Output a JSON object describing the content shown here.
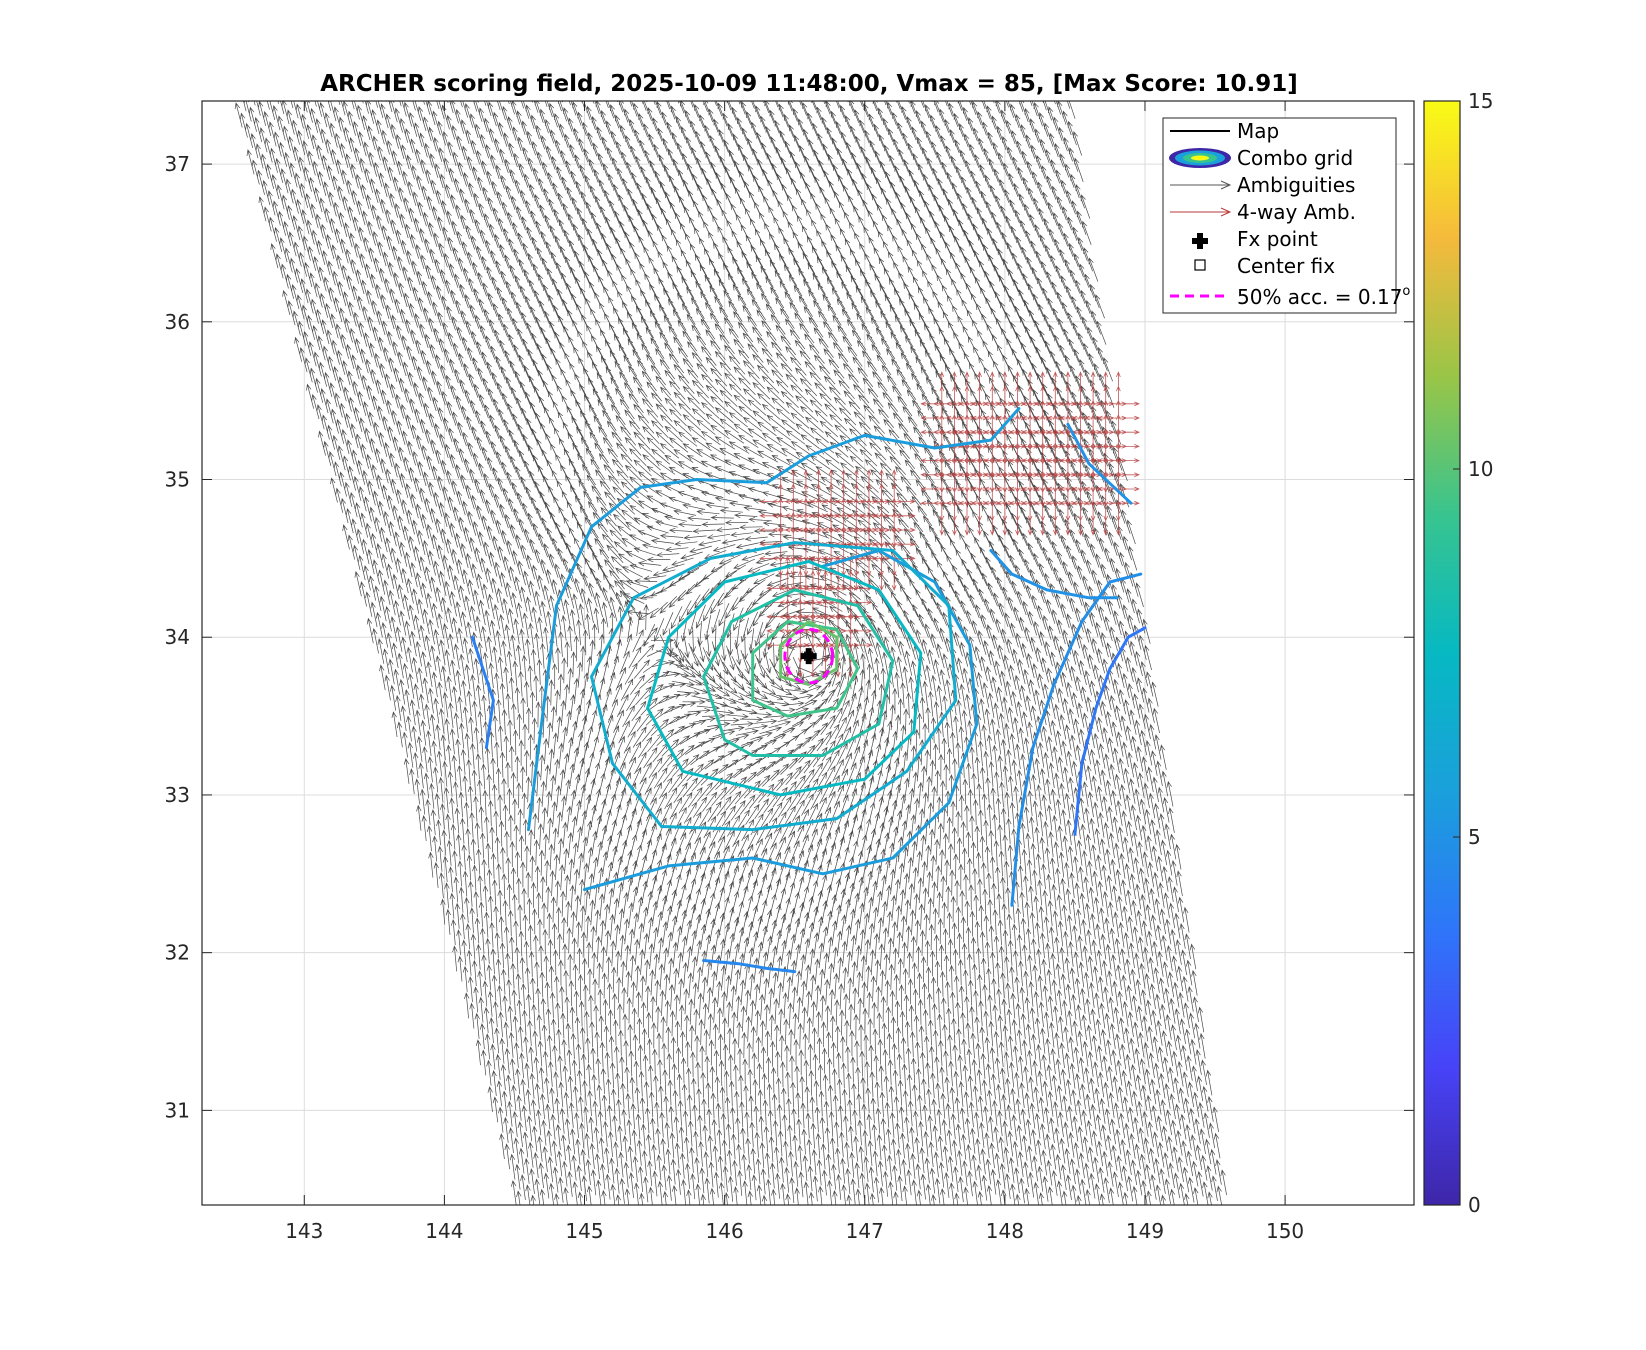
{
  "chart_data": {
    "type": "scatter",
    "title": "ARCHER scoring field, 2025-10-09 11:48:00, Vmax = 85, [Max Score: 10.91]",
    "xlabel": "",
    "ylabel": "",
    "xlim": [
      142.27,
      150.92
    ],
    "ylim": [
      30.4,
      37.4
    ],
    "x_ticks": [
      143,
      144,
      145,
      146,
      147,
      148,
      149,
      150
    ],
    "x_tick_labels": [
      "143",
      "144",
      "145",
      "146",
      "147",
      "148",
      "149",
      "150"
    ],
    "y_ticks": [
      31,
      32,
      33,
      34,
      35,
      36,
      37
    ],
    "y_tick_labels": [
      "31",
      "32",
      "33",
      "34",
      "35",
      "36",
      "37"
    ],
    "grid": true,
    "legend_position": "top-right",
    "legend": [
      {
        "key": "map",
        "label": "Map"
      },
      {
        "key": "combo",
        "label": "Combo grid"
      },
      {
        "key": "amb",
        "label": "Ambiguities"
      },
      {
        "key": "amb4",
        "label": "4-way Amb."
      },
      {
        "key": "fx",
        "label": "Fx point"
      },
      {
        "key": "center",
        "label": "Center fix"
      },
      {
        "key": "acc",
        "label": "50% acc. = 0.17",
        "sup": "o"
      }
    ],
    "colorbar": {
      "min": 0,
      "max": 15,
      "ticks": [
        0,
        5,
        10,
        15
      ],
      "tick_labels": [
        "0",
        "5",
        "10",
        "15"
      ],
      "colormap": "parula"
    },
    "center": {
      "lon": 146.6,
      "lat": 33.88
    },
    "accuracy_radius_deg": 0.17,
    "swath": {
      "left_edge": [
        [
          142.5,
          37.4
        ],
        [
          144.5,
          30.4
        ]
      ],
      "right_edge": [
        [
          149.6,
          30.4
        ],
        [
          148.5,
          37.4
        ]
      ]
    },
    "contours": [
      {
        "level": 4.2,
        "points": [
          [
            144.2,
            34.0
          ],
          [
            144.35,
            33.6
          ],
          [
            144.3,
            33.3
          ]
        ]
      },
      {
        "level": 4.5,
        "points": [
          [
            145.85,
            31.95
          ],
          [
            146.1,
            31.93
          ],
          [
            146.3,
            31.9
          ],
          [
            146.5,
            31.88
          ]
        ]
      },
      {
        "level": 3.8,
        "points": [
          [
            148.5,
            32.75
          ],
          [
            148.55,
            33.2
          ],
          [
            148.65,
            33.55
          ],
          [
            148.75,
            33.8
          ],
          [
            148.88,
            34.0
          ],
          [
            149.0,
            34.06
          ]
        ]
      },
      {
        "level": 4.8,
        "points": [
          [
            148.05,
            32.3
          ],
          [
            148.1,
            32.8
          ],
          [
            148.2,
            33.3
          ],
          [
            148.35,
            33.7
          ],
          [
            148.55,
            34.1
          ],
          [
            148.75,
            34.35
          ],
          [
            148.97,
            34.4
          ]
        ]
      },
      {
        "level": 5.0,
        "points": [
          [
            148.45,
            35.35
          ],
          [
            148.6,
            35.1
          ],
          [
            148.9,
            34.85
          ]
        ]
      },
      {
        "level": 5.0,
        "points": [
          [
            147.9,
            34.55
          ],
          [
            148.05,
            34.4
          ],
          [
            148.3,
            34.3
          ],
          [
            148.6,
            34.25
          ],
          [
            148.8,
            34.25
          ]
        ]
      },
      {
        "level": 5.5,
        "points": [
          [
            144.6,
            32.78
          ],
          [
            144.7,
            33.5
          ],
          [
            144.8,
            34.2
          ],
          [
            145.05,
            34.7
          ],
          [
            145.4,
            34.95
          ],
          [
            145.8,
            35.0
          ],
          [
            146.3,
            34.98
          ],
          [
            146.6,
            35.15
          ],
          [
            147.0,
            35.28
          ],
          [
            147.5,
            35.2
          ],
          [
            147.9,
            35.25
          ],
          [
            148.1,
            35.45
          ]
        ]
      },
      {
        "level": 5.5,
        "points": [
          [
            145.0,
            32.4
          ],
          [
            145.6,
            32.55
          ],
          [
            146.2,
            32.6
          ],
          [
            146.7,
            32.5
          ],
          [
            147.2,
            32.6
          ],
          [
            147.6,
            32.95
          ],
          [
            147.8,
            33.45
          ],
          [
            147.75,
            33.95
          ],
          [
            147.5,
            34.35
          ],
          [
            147.1,
            34.55
          ],
          [
            146.7,
            34.45
          ]
        ]
      },
      {
        "level": 6.5,
        "points": [
          [
            145.55,
            32.8
          ],
          [
            145.2,
            33.2
          ],
          [
            145.05,
            33.75
          ],
          [
            145.35,
            34.25
          ],
          [
            145.9,
            34.5
          ],
          [
            146.5,
            34.6
          ],
          [
            147.2,
            34.55
          ],
          [
            147.6,
            34.2
          ],
          [
            147.65,
            33.6
          ],
          [
            147.3,
            33.15
          ],
          [
            146.8,
            32.85
          ],
          [
            146.2,
            32.78
          ],
          [
            145.55,
            32.8
          ]
        ]
      },
      {
        "level": 7.5,
        "points": [
          [
            145.7,
            33.15
          ],
          [
            145.45,
            33.55
          ],
          [
            145.6,
            34.0
          ],
          [
            146.0,
            34.35
          ],
          [
            146.6,
            34.48
          ],
          [
            147.1,
            34.3
          ],
          [
            147.4,
            33.9
          ],
          [
            147.35,
            33.4
          ],
          [
            147.0,
            33.1
          ],
          [
            146.4,
            33.0
          ],
          [
            145.7,
            33.15
          ]
        ]
      },
      {
        "level": 8.5,
        "points": [
          [
            146.0,
            33.35
          ],
          [
            145.85,
            33.75
          ],
          [
            146.05,
            34.1
          ],
          [
            146.5,
            34.3
          ],
          [
            146.95,
            34.2
          ],
          [
            147.2,
            33.85
          ],
          [
            147.1,
            33.45
          ],
          [
            146.7,
            33.25
          ],
          [
            146.2,
            33.25
          ],
          [
            146.0,
            33.35
          ]
        ]
      },
      {
        "level": 9.5,
        "points": [
          [
            146.2,
            33.6
          ],
          [
            146.2,
            33.9
          ],
          [
            146.45,
            34.1
          ],
          [
            146.8,
            34.05
          ],
          [
            146.95,
            33.8
          ],
          [
            146.8,
            33.55
          ],
          [
            146.45,
            33.5
          ],
          [
            146.2,
            33.6
          ]
        ]
      },
      {
        "level": 10.3,
        "points": [
          [
            146.4,
            33.75
          ],
          [
            146.4,
            33.95
          ],
          [
            146.6,
            34.1
          ],
          [
            146.8,
            34.0
          ],
          [
            146.8,
            33.8
          ],
          [
            146.6,
            33.7
          ],
          [
            146.4,
            33.75
          ]
        ]
      }
    ],
    "ambiguity_field": {
      "spacing_deg": 0.075,
      "rotation_deg": 30,
      "vector_length_deg": 0.16
    },
    "four_way_regions": [
      {
        "lon_range": [
          147.55,
          148.9
        ],
        "lat_range": [
          34.85,
          35.55
        ]
      },
      {
        "lon_range": [
          146.4,
          147.25
        ],
        "lat_range": [
          34.5,
          34.95
        ]
      },
      {
        "lon_range": [
          146.45,
          146.9
        ],
        "lat_range": [
          33.95,
          34.4
        ]
      }
    ]
  }
}
